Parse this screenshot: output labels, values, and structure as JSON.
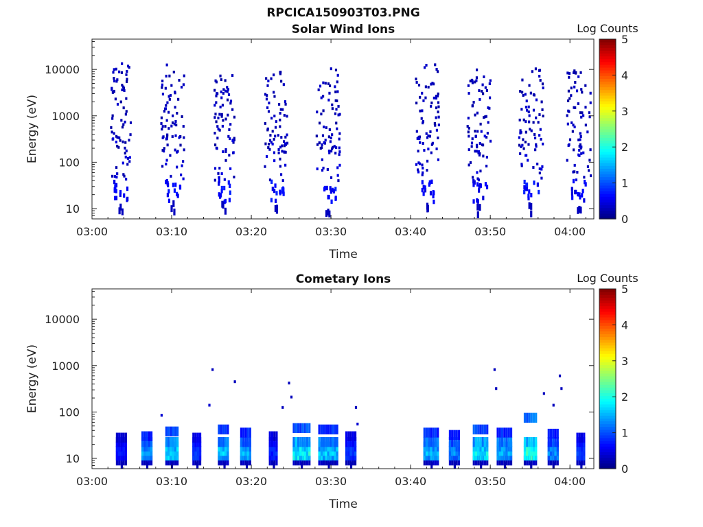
{
  "figure": {
    "title": "RPCICA150903T03.PNG"
  },
  "chart_data": [
    {
      "type": "heatmap",
      "title": "Solar Wind Ions",
      "xlabel": "Time",
      "ylabel": "Energy (eV)",
      "x_ticks": [
        "03:00",
        "03:10",
        "03:20",
        "03:30",
        "03:40",
        "03:50",
        "04:00"
      ],
      "x_range_minutes": [
        0,
        63
      ],
      "y_scale": "log",
      "y_ticks": [
        "10",
        "100",
        "1000",
        "10000"
      ],
      "y_range": [
        6,
        45000
      ],
      "colorbar": {
        "label": "Log Counts",
        "ticks": [
          "0",
          "1",
          "2",
          "3",
          "4",
          "5"
        ],
        "range": [
          0,
          5
        ],
        "colormap": "jet"
      },
      "bursts": [
        {
          "center_min": 3.5,
          "width_min": 2.5,
          "low_band_value": 0.4,
          "max_energy": 14000
        },
        {
          "center_min": 10.0,
          "width_min": 3.0,
          "low_band_value": 0.5,
          "max_energy": 13000
        },
        {
          "center_min": 16.5,
          "width_min": 2.5,
          "low_band_value": 0.5,
          "max_energy": 8000
        },
        {
          "center_min": 23.0,
          "width_min": 3.0,
          "low_band_value": 0.5,
          "max_energy": 9000
        },
        {
          "center_min": 29.5,
          "width_min": 3.0,
          "low_band_value": 0.5,
          "max_energy": 12000
        },
        {
          "center_min": 42.0,
          "width_min": 3.0,
          "low_band_value": 0.4,
          "max_energy": 13000
        },
        {
          "center_min": 48.5,
          "width_min": 3.0,
          "low_band_value": 0.4,
          "max_energy": 11000
        },
        {
          "center_min": 55.0,
          "width_min": 3.0,
          "low_band_value": 0.5,
          "max_energy": 11000
        },
        {
          "center_min": 61.0,
          "width_min": 3.0,
          "low_band_value": 0.4,
          "max_energy": 10000
        }
      ]
    },
    {
      "type": "heatmap",
      "title": "Cometary Ions",
      "xlabel": "Time",
      "ylabel": "Energy (eV)",
      "x_ticks": [
        "03:00",
        "03:10",
        "03:20",
        "03:30",
        "03:40",
        "03:50",
        "04:00"
      ],
      "x_range_minutes": [
        0,
        63
      ],
      "y_scale": "log",
      "y_ticks": [
        "10",
        "100",
        "1000",
        "10000"
      ],
      "y_range": [
        6,
        45000
      ],
      "colorbar": {
        "label": "Log Counts",
        "ticks": [
          "0",
          "1",
          "2",
          "3",
          "4",
          "5"
        ],
        "range": [
          0,
          5
        ],
        "colormap": "jet"
      },
      "blocks": [
        {
          "t0": 3.0,
          "t1": 4.2,
          "e_top": 28,
          "peak": 0.7
        },
        {
          "t0": 6.2,
          "t1": 7.4,
          "e_top": 30,
          "peak": 1.4
        },
        {
          "t0": 9.2,
          "t1": 10.6,
          "e_top": 38,
          "peak": 1.7
        },
        {
          "t0": 12.6,
          "t1": 13.6,
          "e_top": 28,
          "peak": 0.9
        },
        {
          "t0": 15.8,
          "t1": 17.2,
          "e_top": 42,
          "peak": 1.6
        },
        {
          "t0": 18.6,
          "t1": 20.0,
          "e_top": 36,
          "peak": 1.5
        },
        {
          "t0": 22.2,
          "t1": 23.2,
          "e_top": 30,
          "peak": 0.8
        },
        {
          "t0": 25.2,
          "t1": 27.2,
          "e_top": 45,
          "peak": 1.9
        },
        {
          "t0": 28.4,
          "t1": 30.8,
          "e_top": 42,
          "peak": 1.6
        },
        {
          "t0": 31.8,
          "t1": 33.0,
          "e_top": 30,
          "peak": 0.9
        },
        {
          "t0": 41.6,
          "t1": 43.4,
          "e_top": 36,
          "peak": 1.5
        },
        {
          "t0": 44.8,
          "t1": 46.0,
          "e_top": 32,
          "peak": 1.3
        },
        {
          "t0": 47.8,
          "t1": 49.6,
          "e_top": 42,
          "peak": 1.8
        },
        {
          "t0": 50.8,
          "t1": 52.6,
          "e_top": 36,
          "peak": 1.5
        },
        {
          "t0": 54.2,
          "t1": 55.8,
          "e_top": 75,
          "peak": 2.1
        },
        {
          "t0": 57.2,
          "t1": 58.4,
          "e_top": 34,
          "peak": 1.3
        },
        {
          "t0": 60.8,
          "t1": 61.8,
          "e_top": 28,
          "peak": 0.9
        }
      ],
      "scatter": [
        {
          "t": 8.6,
          "e": 85,
          "v": 0.4
        },
        {
          "t": 14.6,
          "e": 140,
          "v": 0.4
        },
        {
          "t": 15.0,
          "e": 820,
          "v": 0.3
        },
        {
          "t": 17.8,
          "e": 450,
          "v": 0.3
        },
        {
          "t": 23.8,
          "e": 125,
          "v": 0.3
        },
        {
          "t": 24.6,
          "e": 420,
          "v": 0.3
        },
        {
          "t": 24.9,
          "e": 210,
          "v": 0.3
        },
        {
          "t": 33.0,
          "e": 125,
          "v": 0.3
        },
        {
          "t": 33.2,
          "e": 55,
          "v": 0.4
        },
        {
          "t": 50.4,
          "e": 820,
          "v": 0.3
        },
        {
          "t": 50.6,
          "e": 320,
          "v": 0.3
        },
        {
          "t": 56.6,
          "e": 250,
          "v": 0.3
        },
        {
          "t": 57.8,
          "e": 140,
          "v": 0.3
        },
        {
          "t": 58.6,
          "e": 600,
          "v": 0.3
        },
        {
          "t": 58.8,
          "e": 320,
          "v": 0.3
        }
      ]
    }
  ]
}
